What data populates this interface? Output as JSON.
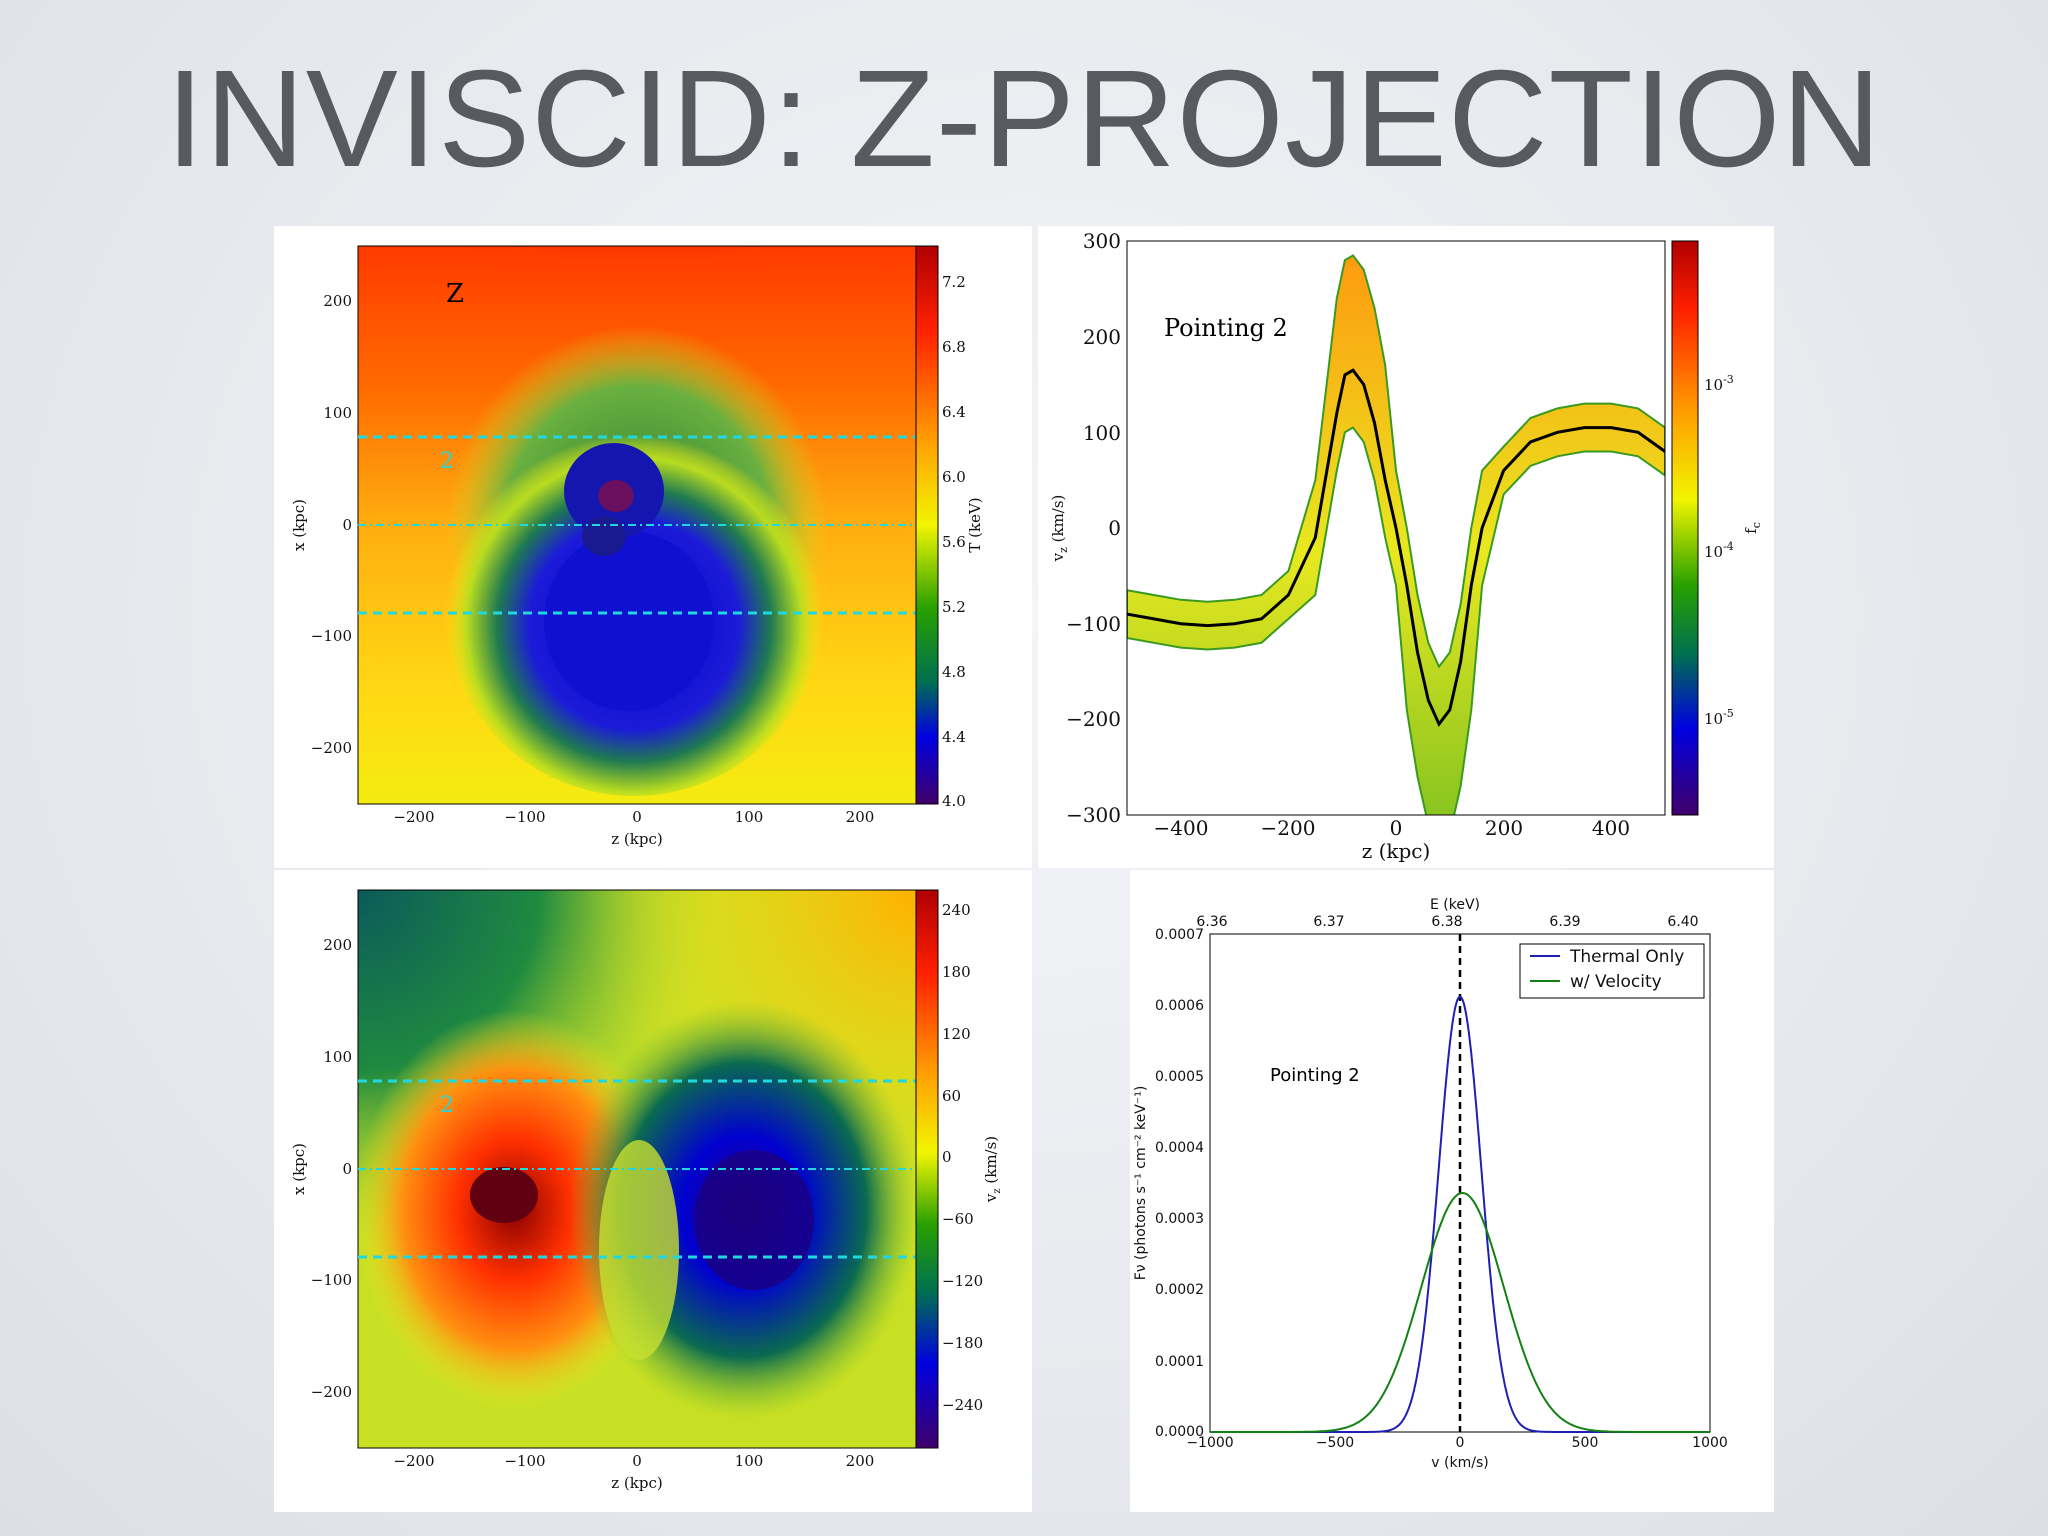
{
  "slide": {
    "title": "INVISCID: Z-PROJECTION"
  },
  "chart_data": [
    {
      "type": "heatmap",
      "panel": "top-left",
      "annotations": [
        "Z",
        "2"
      ],
      "xlabel": "z (kpc)",
      "ylabel": "x (kpc)",
      "xlim": [
        -250,
        250
      ],
      "ylim": [
        -250,
        250
      ],
      "xticks": [
        "−200",
        "−100",
        "0",
        "100",
        "200"
      ],
      "yticks": [
        "200",
        "100",
        "0",
        "−100",
        "−200"
      ],
      "colorbar": {
        "label": "T (keV)",
        "range": [
          4.0,
          7.4
        ],
        "ticks": [
          "7.2",
          "6.8",
          "6.4",
          "6.0",
          "5.6",
          "5.2",
          "4.8",
          "4.4",
          "4.0"
        ]
      },
      "lines": [
        {
          "style": "dashed",
          "y": 80
        },
        {
          "style": "dashdot",
          "y": 0
        },
        {
          "style": "dashed",
          "y": -80
        }
      ]
    },
    {
      "type": "heatmap",
      "panel": "top-right",
      "annotation": "Pointing 2",
      "xlabel": "z (kpc)",
      "ylabel": "vᵣ (km/s)",
      "ylabel_main": "v",
      "ylabel_sub": "z",
      "ylabel_unit": " (km/s)",
      "xlim": [
        -500,
        500
      ],
      "ylim": [
        -300,
        300
      ],
      "xticks": [
        "−400",
        "−200",
        "0",
        "200",
        "400"
      ],
      "yticks": [
        "300",
        "200",
        "100",
        "0",
        "−100",
        "−200",
        "−300"
      ],
      "colorbar": {
        "label": "f",
        "label_sub": "c",
        "scale": "log",
        "ticks": [
          "10",
          "10",
          "10"
        ],
        "tick_exps": [
          "-3",
          "-4",
          "-5"
        ]
      },
      "mean_curve": {
        "x": [
          -500,
          -450,
          -400,
          -350,
          -300,
          -250,
          -200,
          -150,
          -110,
          -95,
          -80,
          -60,
          -40,
          -20,
          0,
          20,
          40,
          60,
          80,
          100,
          120,
          140,
          160,
          200,
          250,
          300,
          350,
          400,
          450,
          500
        ],
        "y": [
          -90,
          -95,
          -100,
          -102,
          -100,
          -95,
          -70,
          -10,
          120,
          160,
          165,
          150,
          110,
          50,
          0,
          -60,
          -130,
          -180,
          -205,
          -190,
          -140,
          -60,
          0,
          60,
          90,
          100,
          105,
          105,
          100,
          80
        ]
      }
    },
    {
      "type": "heatmap",
      "panel": "bottom-left",
      "annotation": "2",
      "xlabel": "z (kpc)",
      "ylabel": "x (kpc)",
      "xlim": [
        -250,
        250
      ],
      "ylim": [
        -250,
        250
      ],
      "xticks": [
        "−200",
        "−100",
        "0",
        "100",
        "200"
      ],
      "yticks": [
        "200",
        "100",
        "0",
        "−100",
        "−200"
      ],
      "colorbar": {
        "label": "v",
        "label_sub": "z",
        "label_unit": " (km/s)",
        "range": [
          -270,
          270
        ],
        "ticks": [
          "240",
          "180",
          "120",
          "60",
          "0",
          "−60",
          "−120",
          "−180",
          "−240"
        ]
      },
      "lines": [
        {
          "style": "dashed",
          "y": 80
        },
        {
          "style": "dashdot",
          "y": 0
        },
        {
          "style": "dashed",
          "y": -80
        }
      ]
    },
    {
      "type": "line",
      "panel": "bottom-right",
      "annotation": "Pointing 2",
      "xlabel": "v (km/s)",
      "ylabel": "Fν (photons s⁻¹ cm⁻² keV⁻¹)",
      "top_xlabel": "E (keV)",
      "top_xticks": [
        "6.36",
        "6.37",
        "6.38",
        "6.39",
        "6.40"
      ],
      "xlim": [
        -1000,
        1000
      ],
      "ylim": [
        0,
        0.0007
      ],
      "xticks": [
        "−1000",
        "−500",
        "0",
        "500",
        "1000"
      ],
      "yticks": [
        "0.0007",
        "0.0006",
        "0.0005",
        "0.0004",
        "0.0003",
        "0.0002",
        "0.0001",
        "0.0000"
      ],
      "legend_position": "top-right",
      "series": [
        {
          "name": "Thermal Only",
          "color": "#1f1fb4",
          "peak": 0.000612,
          "center": 0,
          "sigma": 85
        },
        {
          "name": "w/ Velocity",
          "color": "#138013",
          "peak": 0.000336,
          "center": 10,
          "sigma": 165
        }
      ],
      "vline": {
        "x": 0,
        "style": "dashed"
      }
    }
  ]
}
